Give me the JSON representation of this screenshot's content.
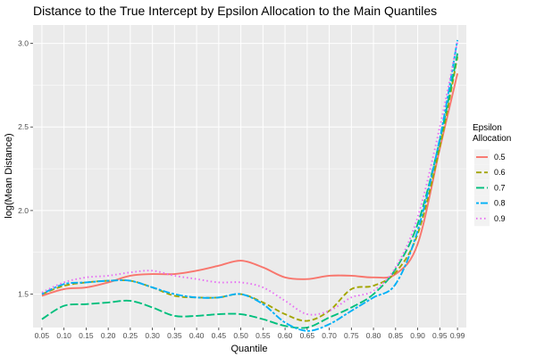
{
  "chart_data": {
    "type": "line",
    "title": "Distance to the True Intercept by Epsilon Allocation to the Main Quantiles",
    "xlabel": "Quantile",
    "ylabel": "log(Mean Distance)",
    "x": [
      0.05,
      0.1,
      0.15,
      0.2,
      0.25,
      0.3,
      0.35,
      0.4,
      0.45,
      0.5,
      0.55,
      0.6,
      0.65,
      0.7,
      0.75,
      0.8,
      0.85,
      0.9,
      0.95,
      0.99
    ],
    "x_tick_labels": [
      "0.05",
      "0.10",
      "0.15",
      "0.20",
      "0.25",
      "0.30",
      "0.35",
      "0.40",
      "0.45",
      "0.50",
      "0.55",
      "0.60",
      "0.65",
      "0.70",
      "0.75",
      "0.80",
      "0.85",
      "0.90",
      "0.95",
      "0.99"
    ],
    "y_ticks": [
      1.5,
      2.0,
      2.5,
      3.0
    ],
    "y_tick_labels": [
      "1.5",
      "2.0",
      "2.5",
      "3.0"
    ],
    "xlim": [
      0.03,
      1.01
    ],
    "ylim": [
      1.3,
      3.11
    ],
    "grid": true,
    "legend_position": "right",
    "legend_title": "Epsilon Allocation",
    "series": [
      {
        "name": "0.5",
        "color": "#F8766D",
        "dash": "solid",
        "values": [
          1.49,
          1.53,
          1.54,
          1.57,
          1.61,
          1.62,
          1.62,
          1.64,
          1.67,
          1.7,
          1.66,
          1.6,
          1.59,
          1.61,
          1.61,
          1.6,
          1.62,
          1.8,
          2.37,
          2.82
        ]
      },
      {
        "name": "0.6",
        "color": "#A3A500",
        "dash": "dashed",
        "values": [
          1.5,
          1.55,
          1.57,
          1.58,
          1.58,
          1.54,
          1.49,
          1.48,
          1.48,
          1.5,
          1.45,
          1.38,
          1.34,
          1.4,
          1.53,
          1.55,
          1.63,
          1.86,
          2.38,
          2.92
        ]
      },
      {
        "name": "0.7",
        "color": "#00BF7D",
        "dash": "longdash",
        "values": [
          1.35,
          1.43,
          1.44,
          1.45,
          1.46,
          1.42,
          1.37,
          1.37,
          1.38,
          1.38,
          1.35,
          1.31,
          1.3,
          1.36,
          1.42,
          1.5,
          1.65,
          1.92,
          2.42,
          2.94
        ]
      },
      {
        "name": "0.8",
        "color": "#00B0F6",
        "dash": "twodash",
        "values": [
          1.5,
          1.56,
          1.57,
          1.58,
          1.58,
          1.54,
          1.5,
          1.48,
          1.48,
          1.5,
          1.44,
          1.33,
          1.28,
          1.32,
          1.4,
          1.48,
          1.56,
          1.88,
          2.43,
          3.02
        ]
      },
      {
        "name": "0.9",
        "color": "#E76BF3",
        "dash": "dotted",
        "values": [
          1.51,
          1.57,
          1.6,
          1.61,
          1.63,
          1.64,
          1.61,
          1.59,
          1.57,
          1.57,
          1.54,
          1.46,
          1.38,
          1.4,
          1.48,
          1.52,
          1.66,
          1.96,
          2.5,
          3.01
        ]
      }
    ]
  }
}
